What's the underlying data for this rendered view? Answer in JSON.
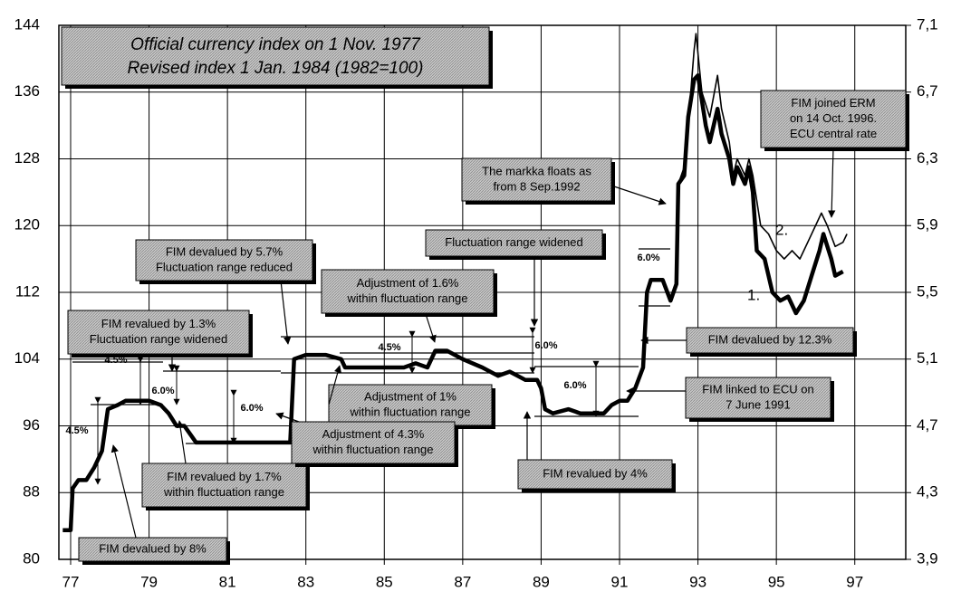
{
  "chart_data": {
    "type": "line",
    "title_lines": [
      "Official currency index on 1 Nov. 1977",
      "Revised index 1 Jan. 1984 (1982=100)"
    ],
    "xlim": [
      76.7,
      98.3
    ],
    "xticks": [
      77,
      79,
      81,
      83,
      85,
      87,
      89,
      91,
      93,
      95,
      97
    ],
    "ylim": [
      80,
      144
    ],
    "yticks": [
      80,
      88,
      96,
      104,
      112,
      120,
      128,
      136,
      144
    ],
    "y2lim": [
      3.9,
      7.1
    ],
    "y2ticks": [
      {
        "value": 3.9,
        "label": "3,9"
      },
      {
        "value": 4.3,
        "label": "4,3"
      },
      {
        "value": 4.7,
        "label": "4,7"
      },
      {
        "value": 5.1,
        "label": "5,1"
      },
      {
        "value": 5.5,
        "label": "5,5"
      },
      {
        "value": 5.9,
        "label": "5,9"
      },
      {
        "value": 6.3,
        "label": "6,3"
      },
      {
        "value": 6.7,
        "label": "6,7"
      },
      {
        "value": 7.1,
        "label": "7,1"
      }
    ],
    "grid": true,
    "series": [
      {
        "name": "1.",
        "color": "#000000",
        "width": 4.5,
        "x": [
          76.8,
          77.0,
          77.05,
          77.2,
          77.4,
          77.6,
          77.8,
          77.95,
          78.2,
          78.4,
          79.0,
          79.3,
          79.5,
          79.7,
          79.9,
          80.05,
          80.2,
          82.6,
          82.7,
          83.0,
          83.5,
          83.9,
          84.0,
          85.0,
          85.5,
          85.8,
          86.1,
          86.3,
          86.6,
          87.0,
          87.5,
          87.9,
          88.2,
          88.6,
          88.9,
          89.0,
          89.1,
          89.3,
          89.7,
          90.0,
          90.3,
          90.6,
          90.8,
          91.0,
          91.2,
          91.4,
          91.6,
          91.7,
          91.8,
          92.1,
          92.3,
          92.45,
          92.5,
          92.65,
          92.75,
          92.9,
          93.0,
          93.2,
          93.3,
          93.5,
          93.6,
          93.8,
          93.9,
          94.0,
          94.2,
          94.3,
          94.4,
          94.5,
          94.7,
          94.9,
          95.1,
          95.3,
          95.5,
          95.7,
          95.9,
          96.1,
          96.2,
          96.4,
          96.5,
          96.7
        ],
        "values": [
          83.5,
          83.5,
          88.5,
          89.5,
          89.5,
          91,
          93,
          98,
          98.5,
          99,
          99,
          98.5,
          97.5,
          96,
          96,
          95,
          94,
          94,
          104,
          104.5,
          104.5,
          104,
          103,
          103,
          103,
          103.5,
          103,
          105,
          105,
          104,
          103,
          102,
          102.5,
          101.5,
          101.5,
          100.5,
          98,
          97.5,
          98,
          97.5,
          97.5,
          97.5,
          98.5,
          99,
          99,
          100.5,
          103,
          112,
          113.5,
          113.5,
          111,
          113,
          125,
          126,
          133,
          137.5,
          138,
          132,
          130,
          134,
          131,
          128,
          125,
          127,
          125,
          127,
          124,
          117,
          116,
          112,
          111,
          111.5,
          109.5,
          111,
          114,
          117,
          119,
          116,
          114,
          114.5
        ]
      },
      {
        "name": "2.",
        "color": "#000000",
        "width": 1.6,
        "x": [
          92.3,
          92.45,
          92.5,
          92.65,
          92.8,
          92.9,
          92.95,
          93.1,
          93.3,
          93.5,
          93.6,
          93.8,
          93.9,
          94.0,
          94.2,
          94.3,
          94.4,
          94.6,
          94.8,
          95.0,
          95.2,
          95.4,
          95.6,
          95.8,
          96.0,
          96.15,
          96.3,
          96.5,
          96.7,
          96.8
        ],
        "values": [
          111,
          113,
          125,
          127,
          135,
          141,
          143,
          136,
          133,
          138,
          134,
          130,
          126,
          128,
          126,
          128,
          126,
          120,
          119,
          117,
          116,
          117,
          116,
          118,
          120,
          121.5,
          120,
          117.5,
          118,
          119
        ]
      }
    ],
    "annotations": [
      {
        "lines": [
          "FIM devalued by 8%"
        ]
      },
      {
        "lines": [
          "FIM revalued by 1.3%",
          "Fluctuation range widened"
        ]
      },
      {
        "lines": [
          "FIM revalued by 1.7%",
          "within fluctuation range"
        ]
      },
      {
        "lines": [
          "FIM devalued by 5.7%",
          "Fluctuation range reduced"
        ]
      },
      {
        "lines": [
          "Adjustment of 1.6%",
          "within fluctuation range"
        ]
      },
      {
        "lines": [
          "Adjustment of 1%",
          "within fluctuation range"
        ]
      },
      {
        "lines": [
          "Adjustment of 4.3%",
          "within fluctuation range"
        ]
      },
      {
        "lines": [
          "Fluctuation range widened"
        ]
      },
      {
        "lines": [
          "FIM revalued by 4%"
        ]
      },
      {
        "lines": [
          "The markka floats as",
          "from 8 Sep.1992"
        ]
      },
      {
        "lines": [
          "FIM devalued by 12.3%"
        ]
      },
      {
        "lines": [
          "FIM linked to ECU on",
          "7 June 1991"
        ]
      },
      {
        "lines": [
          "FIM joined ERM",
          "on 14 Oct. 1996.",
          "ECU central rate"
        ]
      }
    ],
    "band_labels": [
      "4.5%",
      "4.5%",
      "6.0%",
      "6.0%",
      "4.5%",
      "6.0%",
      "6.0%",
      "6.0%"
    ]
  }
}
